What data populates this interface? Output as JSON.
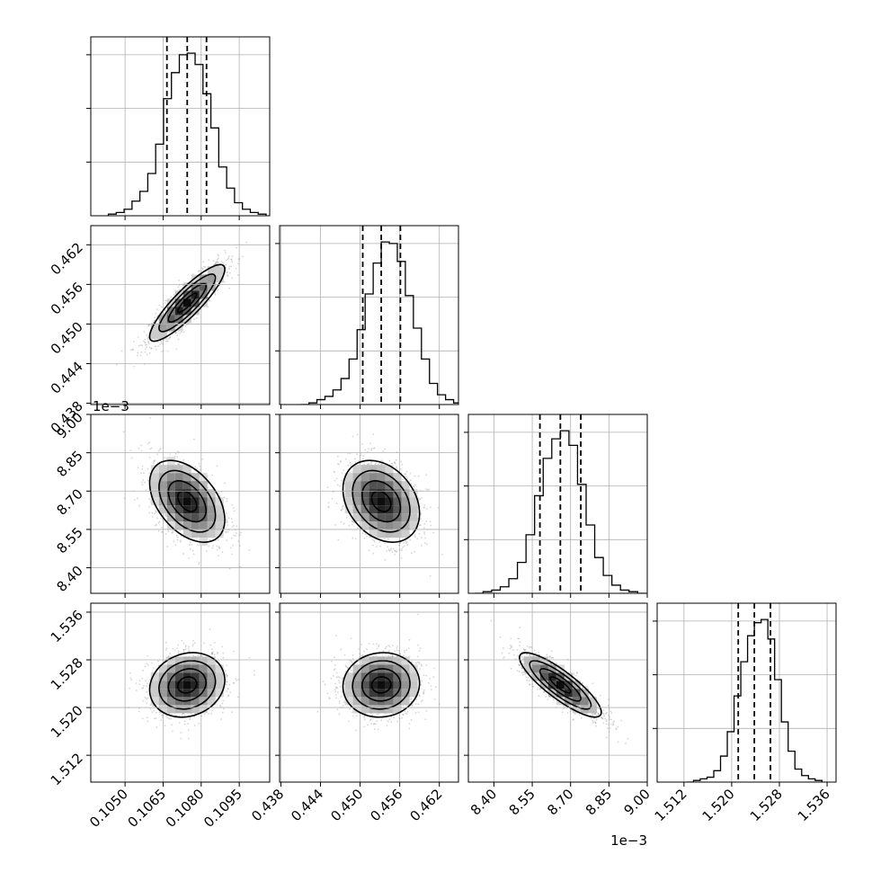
{
  "chart_data": {
    "type": "corner",
    "parameters": [
      {
        "key": "p0",
        "range": [
          0.10365,
          0.1107
        ],
        "ticks": [
          0.105,
          0.1065,
          0.108,
          0.1095
        ],
        "tick_labels": [
          "0.1050",
          "0.1065",
          "0.1080",
          "0.1095"
        ],
        "offset_label": "",
        "mean": 0.10745,
        "std": 0.00074,
        "quantiles": [
          0.10665,
          0.10745,
          0.10821
        ]
      },
      {
        "key": "p1",
        "range": [
          0.4378,
          0.4649
        ],
        "ticks": [
          0.438,
          0.444,
          0.45,
          0.456,
          0.462
        ],
        "tick_labels": [
          "0.438",
          "0.444",
          "0.450",
          "0.456",
          "0.462"
        ],
        "offset_label": "",
        "mean": 0.4532,
        "std": 0.0029,
        "quantiles": [
          0.4504,
          0.4532,
          0.4561
        ]
      },
      {
        "key": "p2",
        "range": [
          8.3,
          9.0
        ],
        "ticks": [
          8.4,
          8.55,
          8.7,
          8.85,
          9.0
        ],
        "tick_labels": [
          "8.40",
          "8.55",
          "8.70",
          "8.85",
          "9.00"
        ],
        "offset_label": "1e−3",
        "mean": 8.66,
        "std": 0.08,
        "quantiles": [
          8.58,
          8.66,
          8.74
        ]
      },
      {
        "key": "p3",
        "range": [
          1.5075,
          1.5375
        ],
        "ticks": [
          1.512,
          1.52,
          1.528,
          1.536
        ],
        "tick_labels": [
          "1.512",
          "1.520",
          "1.528",
          "1.536"
        ],
        "offset_label": "",
        "mean": 1.5238,
        "std": 0.0027,
        "quantiles": [
          1.5211,
          1.5238,
          1.5265
        ]
      }
    ],
    "correlations": {
      "1-0": 0.88,
      "2-0": -0.45,
      "2-1": -0.3,
      "3-0": 0.15,
      "3-1": 0.05,
      "3-2": -0.85
    },
    "histograms": {
      "bins": 20,
      "series": [
        [
          1,
          2,
          4,
          9,
          15,
          26,
          44,
          72,
          88,
          99,
          100,
          93,
          75,
          54,
          30,
          17,
          8,
          4,
          2,
          1
        ],
        [
          0,
          1,
          3,
          5,
          9,
          16,
          28,
          46,
          68,
          87,
          100,
          99,
          88,
          67,
          47,
          28,
          13,
          6,
          3,
          1
        ],
        [
          0,
          1,
          2,
          4,
          9,
          19,
          36,
          60,
          83,
          95,
          100,
          91,
          67,
          42,
          22,
          11,
          5,
          2,
          1,
          0
        ],
        [
          0,
          1,
          2,
          3,
          7,
          16,
          31,
          53,
          74,
          90,
          98,
          100,
          88,
          63,
          37,
          19,
          8,
          4,
          2,
          1
        ]
      ]
    },
    "contour_levels_sigma": [
      0.5,
      1,
      1.5,
      2
    ],
    "grid": true
  }
}
